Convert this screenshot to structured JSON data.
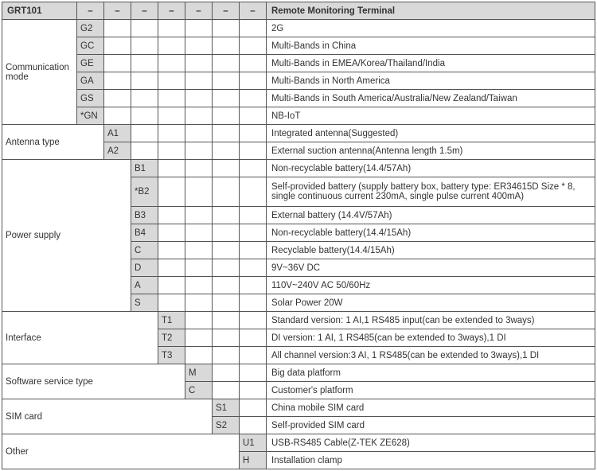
{
  "header": {
    "product": "GRT101",
    "dash": "–",
    "title": "Remote Monitoring Terminal"
  },
  "colors": {
    "header_bg": "#d9d9d9",
    "border": "#555555",
    "text": "#333333"
  },
  "sections": [
    {
      "label": "Communication mode",
      "col": 1,
      "rows": [
        {
          "code": "G2",
          "desc": "2G"
        },
        {
          "code": "GC",
          "desc": "Multi-Bands in China"
        },
        {
          "code": "GE",
          "desc": "Multi-Bands in EMEA/Korea/Thailand/India"
        },
        {
          "code": "GA",
          "desc": "Multi-Bands in North America"
        },
        {
          "code": "GS",
          "desc": "Multi-Bands in South America/Australia/New Zealand/Taiwan"
        },
        {
          "code": "*GN",
          "desc": "NB-IoT"
        }
      ]
    },
    {
      "label": "Antenna type",
      "col": 2,
      "rows": [
        {
          "code": "A1",
          "desc": "Integrated antenna(Suggested)"
        },
        {
          "code": "A2",
          "desc": "External suction antenna(Antenna length 1.5m)"
        }
      ]
    },
    {
      "label": "Power supply",
      "col": 3,
      "rows": [
        {
          "code": "B1",
          "desc": "Non-recyclable battery(14.4/57Ah)"
        },
        {
          "code": "*B2",
          "desc": "Self-provided battery (supply battery box, battery type: ER34615D Size * 8, single continuous current 230mA, single pulse current 400mA)",
          "tall": true
        },
        {
          "code": "B3",
          "desc": "External battery (14.4V/57Ah)"
        },
        {
          "code": "B4",
          "desc": "Non-recyclable battery(14.4/15Ah)"
        },
        {
          "code": "C",
          "desc": "Recyclable battery(14.4/15Ah)"
        },
        {
          "code": "D",
          "desc": "9V~36V DC"
        },
        {
          "code": "A",
          "desc": "110V~240V AC 50/60Hz"
        },
        {
          "code": "S",
          "desc": "Solar Power 20W"
        }
      ]
    },
    {
      "label": "Interface",
      "col": 4,
      "rows": [
        {
          "code": "T1",
          "desc": "Standard version: 1 AI,1 RS485 input(can be extended to 3ways)"
        },
        {
          "code": "T2",
          "desc": "DI version: 1 AI, 1 RS485(can be extended to 3ways),1 DI"
        },
        {
          "code": "T3",
          "desc": "All channel version:3 AI, 1 RS485(can be extended to 3ways),1 DI"
        }
      ]
    },
    {
      "label": "Software service type",
      "col": 5,
      "rows": [
        {
          "code": "M",
          "desc": "Big data platform"
        },
        {
          "code": "C",
          "desc": "Customer's  platform"
        }
      ]
    },
    {
      "label": "SIM card",
      "col": 6,
      "rows": [
        {
          "code": "S1",
          "desc": "China mobile SIM card"
        },
        {
          "code": "S2",
          "desc": "Self-provided SIM card"
        }
      ]
    },
    {
      "label": "Other",
      "col": 7,
      "rows": [
        {
          "code": "U1",
          "desc": "USB-RS485 Cable(Z-TEK ZE628)"
        },
        {
          "code": "H",
          "desc": "Installation clamp"
        }
      ]
    }
  ]
}
